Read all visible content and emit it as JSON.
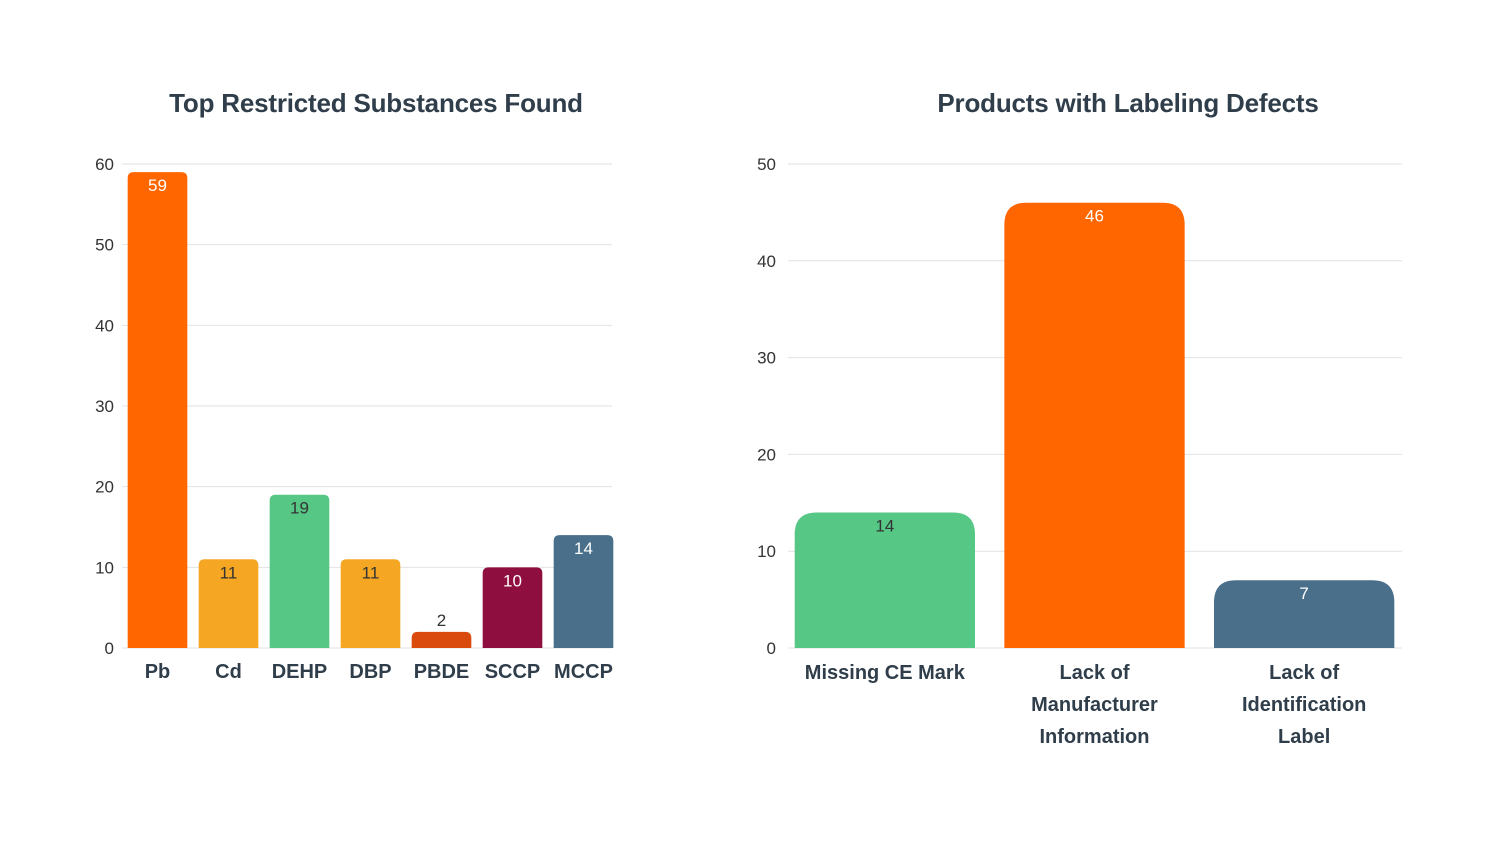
{
  "charts": {
    "left": {
      "title": "Top Restricted Substances Found"
    },
    "right": {
      "title": "Products with Labeling Defects"
    }
  },
  "chart_data": [
    {
      "type": "bar",
      "title": "Top Restricted Substances Found",
      "categories": [
        "Pb",
        "Cd",
        "DEHP",
        "DBP",
        "PBDE",
        "SCCP",
        "MCCP"
      ],
      "values": [
        59,
        11,
        19,
        11,
        2,
        10,
        14
      ],
      "colors": [
        "#ff6600",
        "#f5a623",
        "#57c785",
        "#f5a623",
        "#d94a0c",
        "#8e0e3f",
        "#4a6f8a"
      ],
      "label_colors": [
        "#ffffff",
        "#333333",
        "#333333",
        "#333333",
        "#333333",
        "#ffffff",
        "#ffffff"
      ],
      "xlabel": "",
      "ylabel": "",
      "ylim": [
        0,
        60
      ],
      "yticks": [
        0,
        10,
        20,
        30,
        40,
        50,
        60
      ],
      "grid": true,
      "legend": "none"
    },
    {
      "type": "bar",
      "title": "Products with Labeling Defects",
      "categories": [
        [
          "Missing CE Mark"
        ],
        [
          "Lack of",
          "Manufacturer",
          "Information"
        ],
        [
          "Lack of",
          "Identification",
          "Label"
        ]
      ],
      "values": [
        14,
        46,
        7
      ],
      "colors": [
        "#57c785",
        "#ff6600",
        "#4a6f8a"
      ],
      "label_colors": [
        "#333333",
        "#ffffff",
        "#ffffff"
      ],
      "xlabel": "",
      "ylabel": "",
      "ylim": [
        0,
        50
      ],
      "yticks": [
        0,
        10,
        20,
        30,
        40,
        50
      ],
      "grid": true,
      "legend": "none"
    }
  ]
}
